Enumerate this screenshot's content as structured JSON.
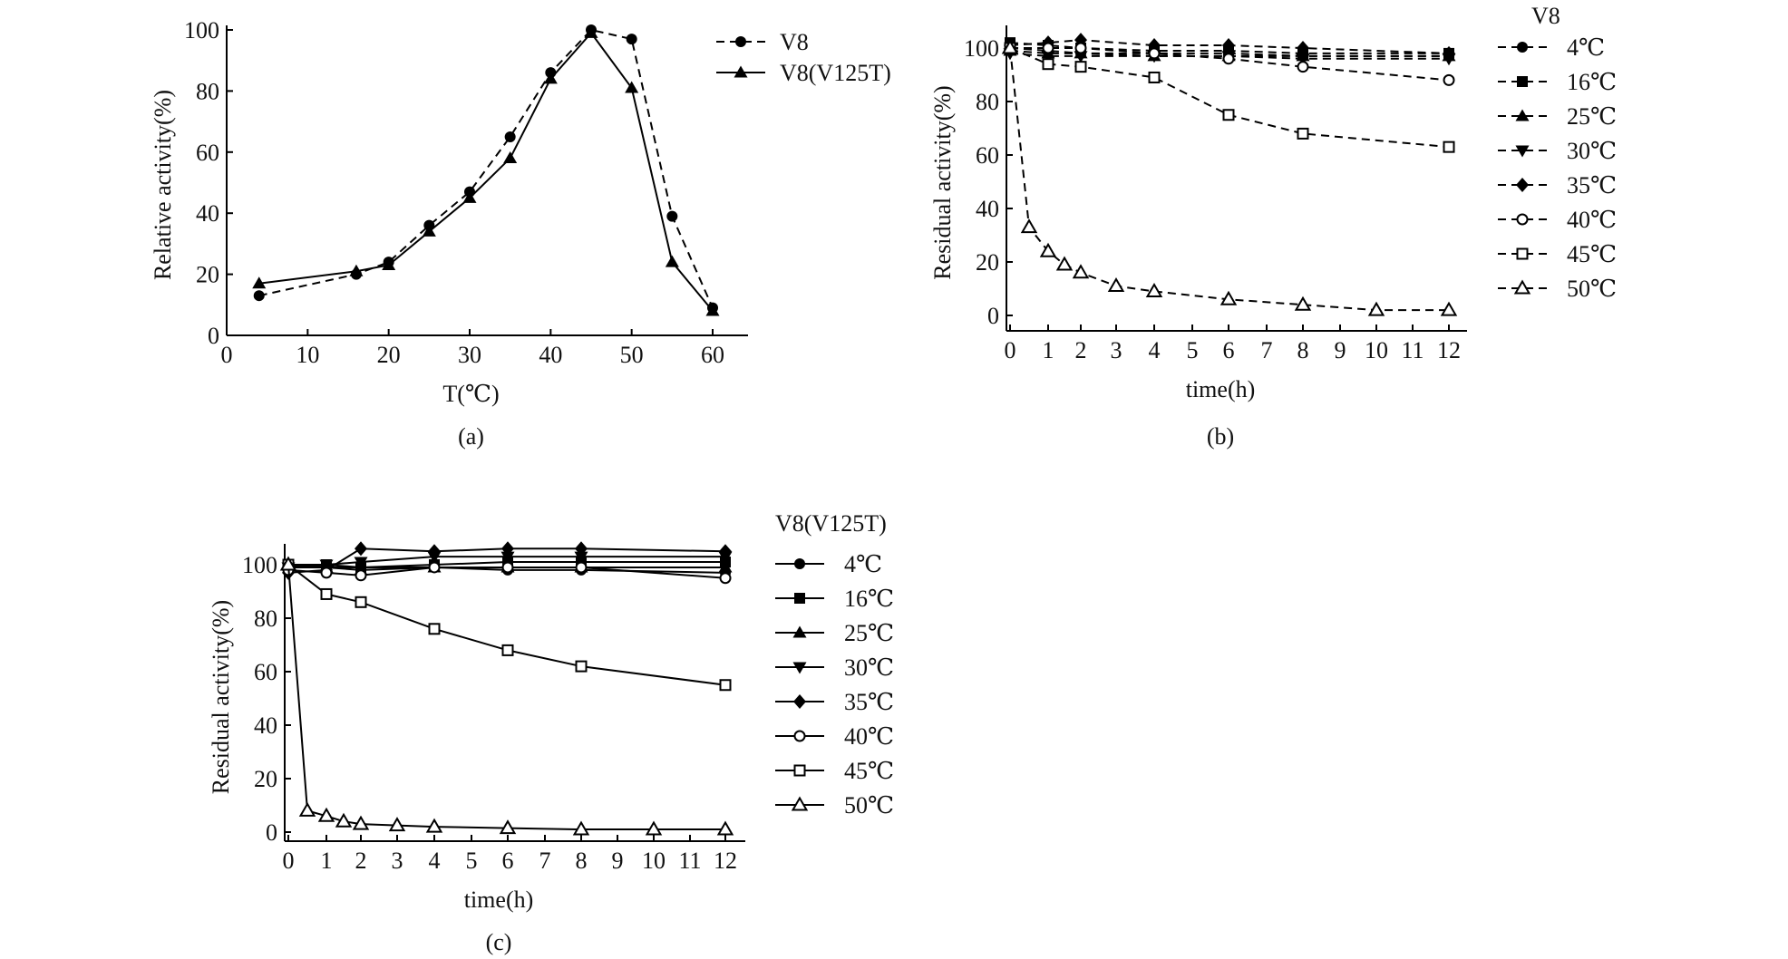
{
  "chart_data": [
    {
      "type": "line",
      "panel_label": "(a)",
      "xlabel": "T(℃)",
      "ylabel": "Relative activity(%)",
      "xlim": [
        0,
        65
      ],
      "ylim": [
        0,
        100
      ],
      "xticks": [
        "0",
        "10",
        "20",
        "30",
        "40",
        "50",
        "60"
      ],
      "yticks": [
        "0",
        "20",
        "40",
        "60",
        "80",
        "100"
      ],
      "legend": "right",
      "series": [
        {
          "name": "V8",
          "marker": "circle",
          "dashed": true,
          "x": [
            4,
            16,
            20,
            25,
            30,
            35,
            40,
            45,
            50,
            55,
            60
          ],
          "y": [
            13,
            20,
            24,
            36,
            47,
            65,
            86,
            100,
            97,
            39,
            9
          ]
        },
        {
          "name": "V8(V125T)",
          "marker": "triangle",
          "dashed": false,
          "x": [
            4,
            16,
            20,
            25,
            30,
            35,
            40,
            45,
            50,
            55,
            60
          ],
          "y": [
            17,
            21,
            23,
            34,
            45,
            58,
            84,
            99,
            81,
            24,
            8
          ]
        }
      ]
    },
    {
      "type": "line",
      "panel_label": "(b)",
      "xlabel": "time(h)",
      "ylabel": "Residual activity(%)",
      "legend_title": "V8",
      "ylim": [
        0,
        105
      ],
      "xticks": [
        "0",
        "1",
        "2",
        "3",
        "4",
        "5",
        "6",
        "7",
        "8",
        "9",
        "10",
        "11",
        "12"
      ],
      "yticks": [
        "0",
        "20",
        "40",
        "60",
        "80",
        "100"
      ],
      "legend": "right",
      "series": [
        {
          "name": "4℃",
          "marker": "circle",
          "dashed": true,
          "x": [
            0,
            1,
            2,
            4,
            6,
            8,
            12
          ],
          "y": [
            100,
            99,
            98,
            98,
            98,
            97,
            97
          ]
        },
        {
          "name": "16℃",
          "marker": "square",
          "dashed": true,
          "x": [
            0,
            1,
            2,
            4,
            6,
            8,
            12
          ],
          "y": [
            102,
            101,
            100,
            99,
            99,
            98,
            98
          ]
        },
        {
          "name": "25℃",
          "marker": "triangle",
          "dashed": true,
          "x": [
            0,
            1,
            2,
            4,
            6,
            8,
            12
          ],
          "y": [
            99,
            98,
            98,
            97,
            97,
            97,
            97
          ]
        },
        {
          "name": "30℃",
          "marker": "triangle-down",
          "dashed": true,
          "x": [
            0,
            1,
            2,
            4,
            6,
            8,
            12
          ],
          "y": [
            98,
            97,
            97,
            97,
            97,
            96,
            96
          ]
        },
        {
          "name": "35℃",
          "marker": "diamond",
          "dashed": true,
          "x": [
            0,
            1,
            2,
            4,
            6,
            8,
            12
          ],
          "y": [
            101,
            102,
            103,
            101,
            101,
            100,
            98
          ]
        },
        {
          "name": "40℃",
          "marker": "circle-open",
          "dashed": true,
          "x": [
            0,
            1,
            2,
            4,
            6,
            8,
            12
          ],
          "y": [
            100,
            100,
            100,
            98,
            96,
            93,
            88
          ]
        },
        {
          "name": "45℃",
          "marker": "square-open",
          "dashed": true,
          "x": [
            0,
            1,
            2,
            4,
            6,
            8,
            12
          ],
          "y": [
            100,
            94,
            93,
            89,
            75,
            68,
            63
          ]
        },
        {
          "name": "50℃",
          "marker": "triangle-open",
          "dashed": true,
          "x": [
            0,
            0.5,
            1,
            1.5,
            2,
            3,
            4,
            6,
            8,
            10,
            12
          ],
          "y": [
            100,
            33,
            24,
            19,
            16,
            11,
            9,
            6,
            4,
            2,
            2
          ]
        }
      ]
    },
    {
      "type": "line",
      "panel_label": "(c)",
      "xlabel": "time(h)",
      "ylabel": "Residual activity(%)",
      "legend_title": "V8(V125T)",
      "ylim": [
        0,
        108
      ],
      "xticks": [
        "0",
        "1",
        "2",
        "3",
        "4",
        "5",
        "6",
        "7",
        "8",
        "9",
        "10",
        "11",
        "12"
      ],
      "yticks": [
        "0",
        "20",
        "40",
        "60",
        "80",
        "100"
      ],
      "legend": "right",
      "series": [
        {
          "name": "4℃",
          "marker": "circle",
          "dashed": false,
          "x": [
            0,
            1,
            2,
            4,
            6,
            8,
            12
          ],
          "y": [
            99,
            99,
            99,
            99,
            98,
            98,
            97
          ]
        },
        {
          "name": "16℃",
          "marker": "square",
          "dashed": false,
          "x": [
            0,
            1,
            2,
            4,
            6,
            8,
            12
          ],
          "y": [
            100,
            100,
            99,
            100,
            101,
            101,
            101
          ]
        },
        {
          "name": "25℃",
          "marker": "triangle",
          "dashed": false,
          "x": [
            0,
            1,
            2,
            4,
            6,
            8,
            12
          ],
          "y": [
            100,
            99,
            98,
            99,
            99,
            99,
            99
          ]
        },
        {
          "name": "30℃",
          "marker": "triangle-down",
          "dashed": false,
          "x": [
            0,
            1,
            2,
            4,
            6,
            8,
            12
          ],
          "y": [
            99,
            100,
            101,
            103,
            103,
            103,
            103
          ]
        },
        {
          "name": "35℃",
          "marker": "diamond",
          "dashed": false,
          "x": [
            0,
            1,
            2,
            4,
            6,
            8,
            12
          ],
          "y": [
            97,
            98,
            106,
            105,
            106,
            106,
            105
          ]
        },
        {
          "name": "40℃",
          "marker": "circle-open",
          "dashed": false,
          "x": [
            0,
            1,
            2,
            4,
            6,
            8,
            12
          ],
          "y": [
            98,
            97,
            96,
            99,
            99,
            99,
            95
          ]
        },
        {
          "name": "45℃",
          "marker": "square-open",
          "dashed": false,
          "x": [
            0,
            1,
            2,
            4,
            6,
            8,
            12
          ],
          "y": [
            100,
            89,
            86,
            76,
            68,
            62,
            55
          ]
        },
        {
          "name": "50℃",
          "marker": "triangle-open",
          "dashed": false,
          "x": [
            0,
            0.5,
            1,
            1.5,
            2,
            3,
            4,
            6,
            8,
            10,
            12
          ],
          "y": [
            100,
            8,
            6,
            4,
            3,
            2.5,
            2,
            1.5,
            1,
            1,
            1
          ]
        }
      ]
    }
  ]
}
